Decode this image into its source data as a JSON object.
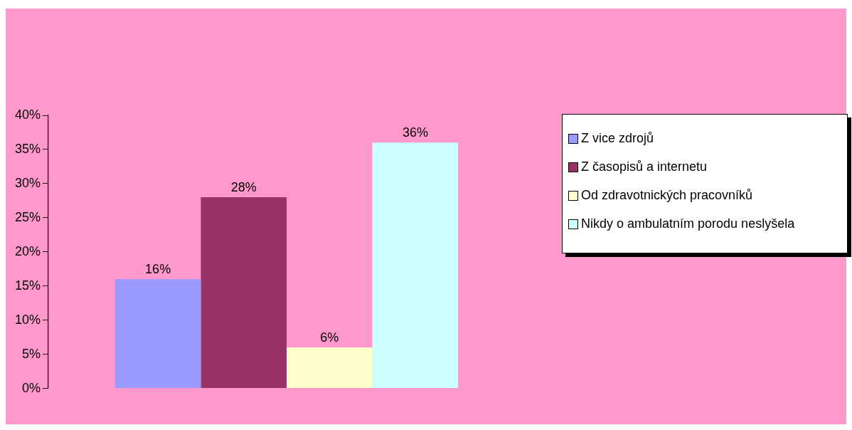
{
  "chart_data": {
    "type": "bar",
    "categories": [
      null
    ],
    "series": [
      {
        "name": "Z vice zdrojů",
        "color": "#9999ff",
        "values": [
          16
        ],
        "value_labels": [
          "16%"
        ]
      },
      {
        "name": "Z časopisů a internetu",
        "color": "#993366",
        "values": [
          28
        ],
        "value_labels": [
          "28%"
        ]
      },
      {
        "name": "Od zdravotnických pracovníků",
        "color": "#ffffcc",
        "values": [
          6
        ],
        "value_labels": [
          "6%"
        ]
      },
      {
        "name": "Nikdy o ambulatním porodu neslyšela",
        "color": "#ccffff",
        "values": [
          36
        ],
        "value_labels": [
          "36%"
        ]
      }
    ],
    "ylim": [
      0,
      40
    ],
    "yticks": [
      {
        "value": 0,
        "label": "0%"
      },
      {
        "value": 5,
        "label": "5%"
      },
      {
        "value": 10,
        "label": "10%"
      },
      {
        "value": 15,
        "label": "15%"
      },
      {
        "value": 20,
        "label": "20%"
      },
      {
        "value": 25,
        "label": "25%"
      },
      {
        "value": 30,
        "label": "30%"
      },
      {
        "value": 35,
        "label": "35%"
      },
      {
        "value": 40,
        "label": "40%"
      }
    ],
    "grid": false,
    "legend": "right"
  }
}
